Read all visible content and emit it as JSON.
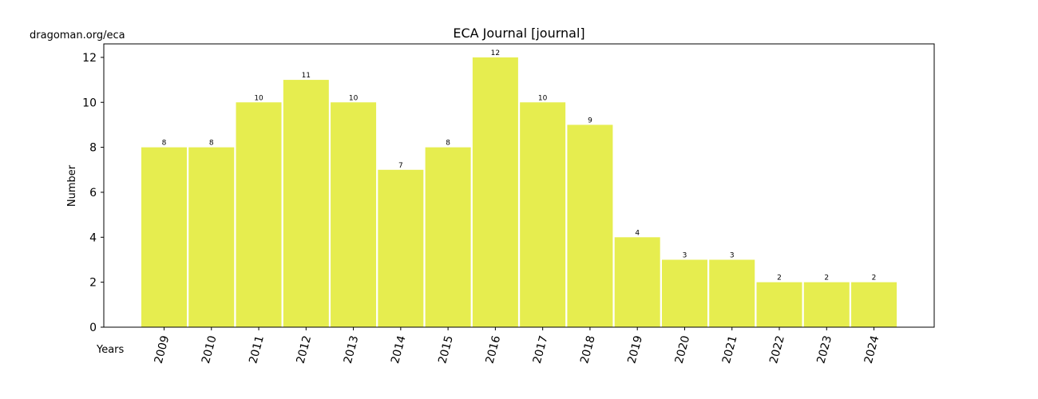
{
  "source_text": "dragoman.org/eca",
  "chart_data": {
    "type": "bar",
    "title": "ECA Journal  [journal]",
    "xlabel": "Years",
    "ylabel": "Number",
    "categories": [
      "2009",
      "2010",
      "2011",
      "2012",
      "2013",
      "2014",
      "2015",
      "2016",
      "2017",
      "2018",
      "2019",
      "2020",
      "2021",
      "2022",
      "2023",
      "2024"
    ],
    "values": [
      8,
      8,
      10,
      11,
      10,
      7,
      8,
      12,
      10,
      9,
      4,
      3,
      3,
      2,
      2,
      2
    ],
    "ylim": [
      0,
      12.6
    ],
    "yticks": [
      0,
      2,
      4,
      6,
      8,
      10,
      12
    ],
    "bar_color": "#e6ed4f",
    "grid": false,
    "legend": "none"
  }
}
